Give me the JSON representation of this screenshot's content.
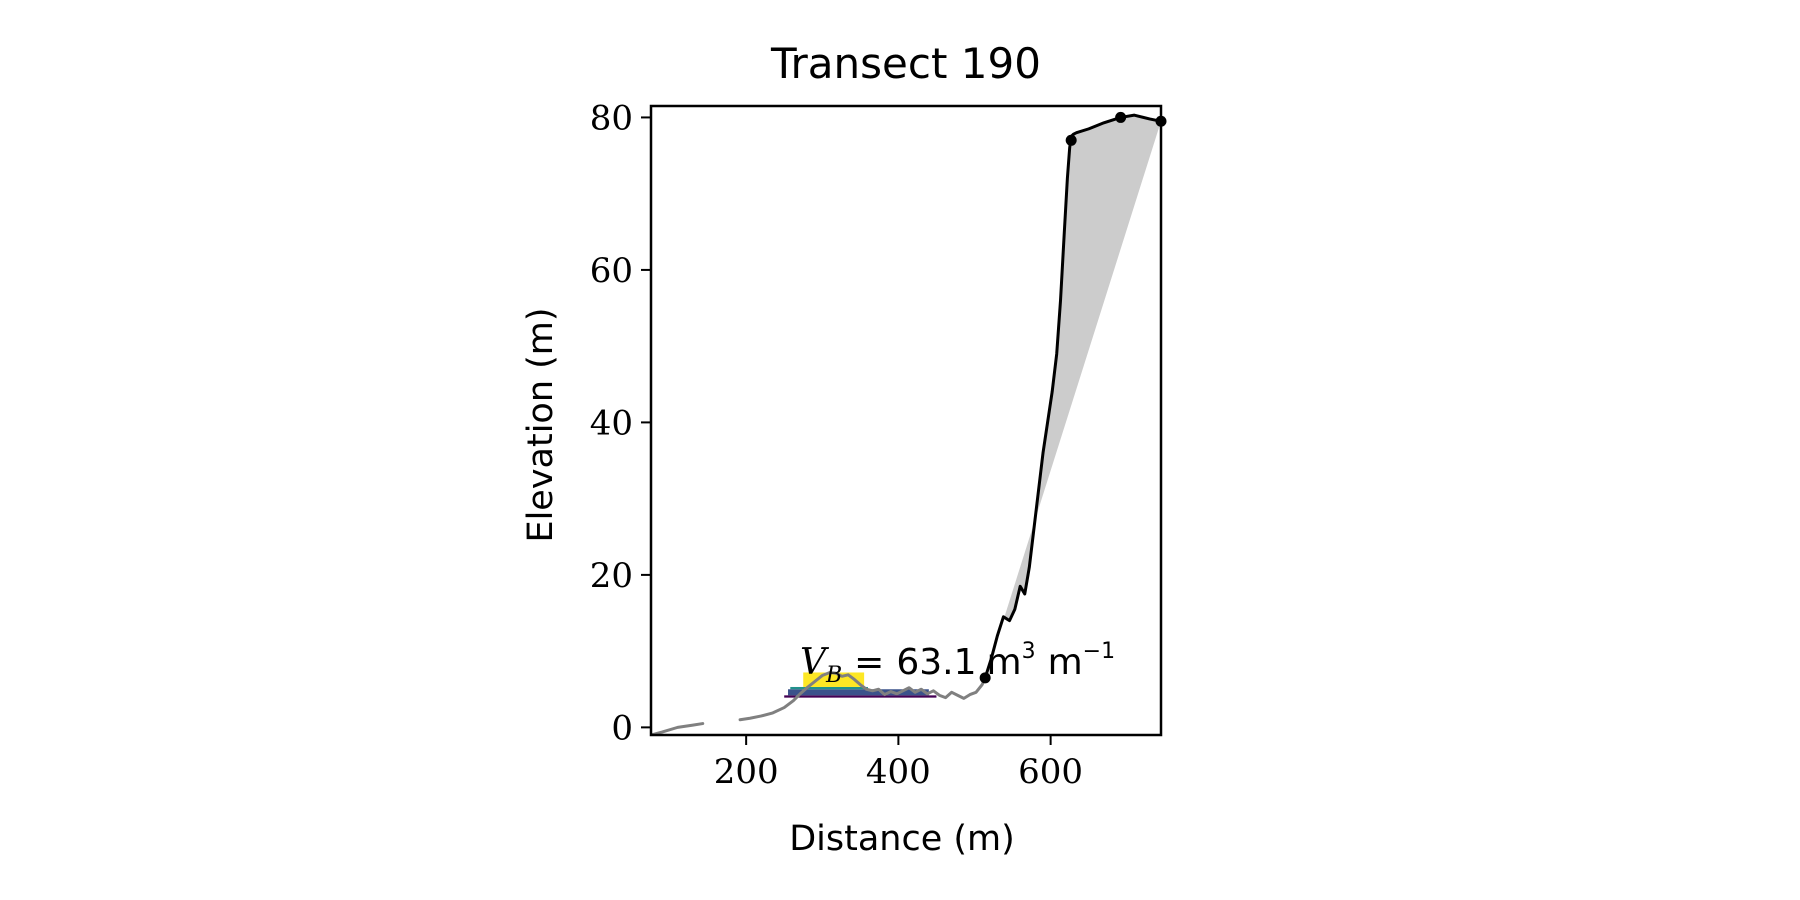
{
  "chart_data": {
    "type": "line",
    "title": "Transect 190",
    "xlabel": "Distance (m)",
    "ylabel": "Elevation (m)",
    "xlim": [
      75,
      745
    ],
    "ylim": [
      -1,
      81.5
    ],
    "xticks": [
      200,
      400,
      600
    ],
    "yticks": [
      0,
      20,
      40,
      60,
      80
    ],
    "grid": false,
    "annotation": {
      "symbol": "V",
      "subscript": "B",
      "equals": "=",
      "value": "63.1",
      "unit_1": "m",
      "unit_1_exp": "3",
      "unit_2": "m",
      "unit_2_exp": "−1"
    },
    "colors": {
      "profile": "#808080",
      "cliff": "#000000",
      "fill": "#cccccc",
      "bar_top": "#fde725",
      "bar_mid": "#21918c",
      "bar_low": "#3b528b",
      "bar_base": "#440154",
      "outline": "#b8a040"
    },
    "series": [
      {
        "role": "profile-left",
        "x": [
          75,
          90,
          110,
          130,
          143
        ],
        "y": [
          -1,
          -0.6,
          0,
          0.3,
          0.5
        ]
      },
      {
        "role": "profile",
        "x": [
          192,
          205,
          220,
          235,
          250,
          262,
          272,
          280,
          290,
          300,
          310,
          318,
          326,
          334,
          342,
          350,
          358,
          366,
          374,
          382,
          390,
          398,
          406,
          414,
          422,
          430,
          438,
          446,
          454,
          462,
          470,
          478,
          486,
          494,
          502,
          510,
          514
        ],
        "y": [
          1.0,
          1.2,
          1.5,
          1.9,
          2.6,
          3.5,
          4.5,
          5.2,
          6.0,
          6.8,
          7.2,
          7.1,
          6.7,
          6.9,
          6.3,
          5.6,
          5.0,
          4.8,
          5.0,
          4.3,
          4.7,
          4.4,
          4.8,
          5.2,
          4.6,
          5.0,
          4.4,
          4.8,
          4.2,
          3.9,
          4.6,
          4.2,
          3.8,
          4.3,
          4.6,
          5.6,
          6.5
        ]
      },
      {
        "role": "cliff",
        "x": [
          514,
          522,
          530,
          538,
          546,
          553,
          560,
          566,
          572,
          578,
          584,
          590,
          596,
          602,
          608,
          613,
          618,
          622,
          625,
          627,
          630,
          634,
          650,
          670,
          692,
          710,
          730,
          745
        ],
        "y": [
          6.5,
          9.0,
          12.0,
          14.5,
          14.0,
          15.5,
          18.5,
          17.5,
          21.0,
          26.0,
          31.0,
          36.0,
          40.0,
          44.0,
          49.0,
          56.0,
          65.0,
          72.0,
          76.0,
          77.5,
          77.8,
          78.0,
          78.5,
          79.3,
          80.0,
          80.3,
          79.8,
          79.5
        ]
      }
    ],
    "markers": [
      {
        "x": 514,
        "y": 6.5
      },
      {
        "x": 627,
        "y": 77.0
      },
      {
        "x": 692,
        "y": 80.0
      },
      {
        "x": 745,
        "y": 79.5
      }
    ],
    "fill_between": {
      "upper_x": [
        533,
        538,
        546,
        553,
        560,
        566,
        572,
        578,
        584,
        590,
        596,
        602,
        608,
        613,
        618,
        622,
        625,
        627,
        630,
        634,
        650,
        670,
        692,
        710,
        730,
        745
      ],
      "upper_y": [
        12.5,
        14.5,
        14.0,
        15.5,
        18.5,
        17.5,
        21.0,
        26.0,
        31.0,
        36.0,
        40.0,
        44.0,
        49.0,
        56.0,
        65.0,
        72.0,
        76.0,
        77.5,
        77.8,
        78.0,
        78.5,
        79.3,
        80.0,
        80.3,
        79.8,
        79.5
      ],
      "chord": [
        [
          533,
          12.5
        ],
        [
          745,
          79.5
        ]
      ]
    },
    "volume_layers": [
      {
        "x0": 250,
        "x1": 450,
        "y0": 3.9,
        "y1": 4.2,
        "color": "bar_base"
      },
      {
        "x0": 255,
        "x1": 440,
        "y0": 4.2,
        "y1": 5.0,
        "color": "bar_low"
      },
      {
        "x0": 258,
        "x1": 360,
        "y0": 5.0,
        "y1": 5.3,
        "color": "bar_mid"
      },
      {
        "x0": 275,
        "x1": 355,
        "y0": 5.3,
        "y1": 7.2,
        "color": "bar_top"
      }
    ]
  }
}
